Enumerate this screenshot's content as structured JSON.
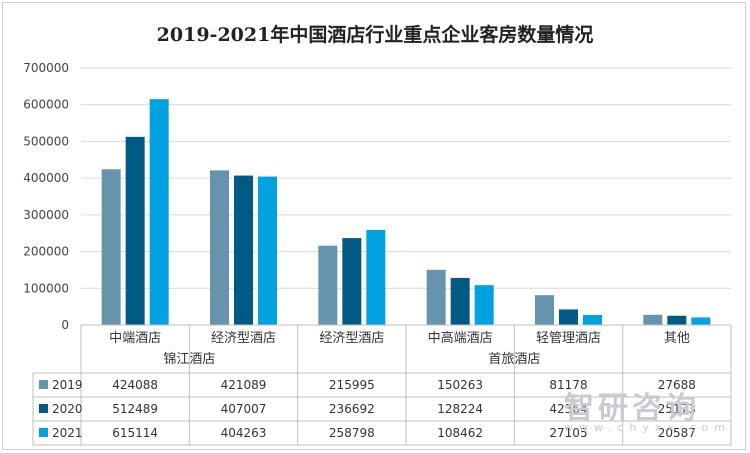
{
  "chart_data": {
    "type": "bar",
    "title": "2019-2021年中国酒店行业重点企业客房数量情况",
    "categories": [
      "中端酒店",
      "经济型酒店",
      "经济型酒店",
      "中高端酒店",
      "轻管理酒店",
      "其他"
    ],
    "groups": [
      {
        "label": "锦江酒店",
        "categories": [
          0,
          1
        ]
      },
      {
        "label": "首旅酒店",
        "categories": [
          2,
          3,
          4,
          5
        ]
      }
    ],
    "series": [
      {
        "name": "2019",
        "color": "#6694ac",
        "values": [
          424088,
          421089,
          215995,
          150263,
          81178,
          27688
        ]
      },
      {
        "name": "2020",
        "color": "#005a84",
        "values": [
          512489,
          407007,
          236692,
          128224,
          42364,
          25173
        ]
      },
      {
        "name": "2021",
        "color": "#00a2e0",
        "values": [
          615114,
          404263,
          258798,
          108462,
          27105,
          20587
        ]
      }
    ],
    "ylim": [
      0,
      700000
    ],
    "yticks": [
      0,
      100000,
      200000,
      300000,
      400000,
      500000,
      600000,
      700000
    ],
    "grid": true,
    "legend": "data-table-left"
  },
  "watermark": {
    "main": "智研咨询",
    "sub": "www.chyxx.com"
  }
}
